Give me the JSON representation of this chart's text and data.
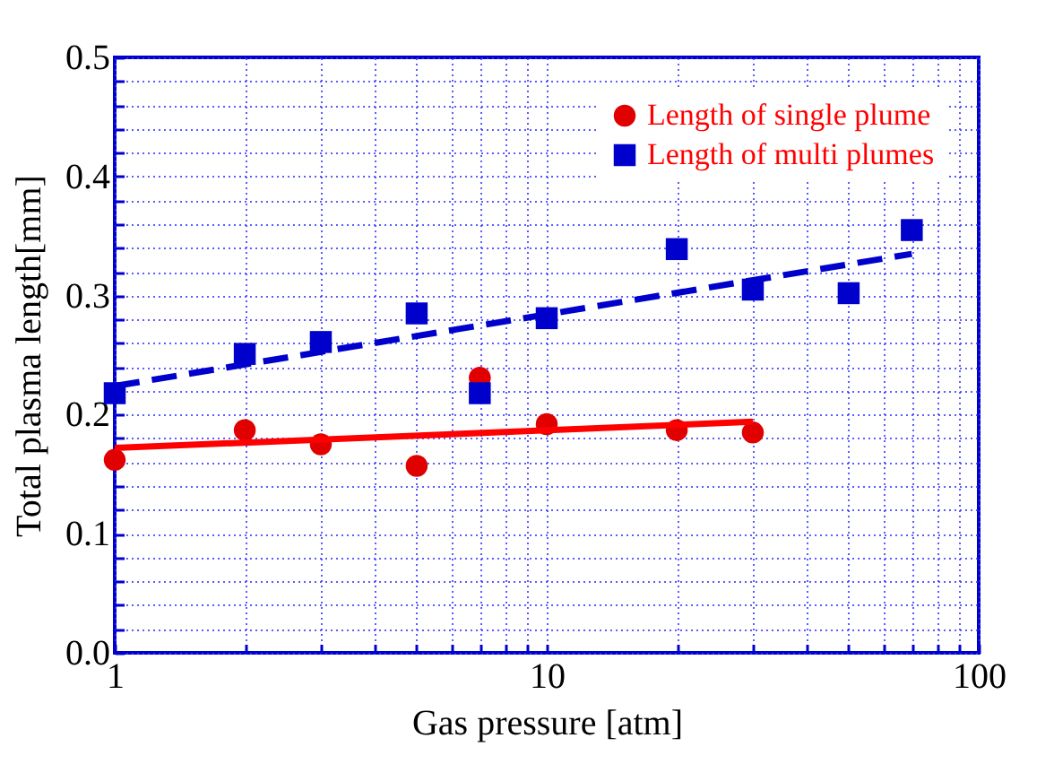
{
  "chart_data": {
    "type": "scatter",
    "xlabel": "Gas pressure [atm]",
    "ylabel": "Total plasma length[mm]",
    "log": "x",
    "grid": true,
    "legend": "top right",
    "xlim": [
      1,
      100
    ],
    "ylim": [
      0,
      0.5
    ],
    "xticks": [
      1,
      {
        "value": 2,
        "label": null
      },
      {
        "value": 3,
        "label": null
      },
      {
        "value": 4,
        "label": null
      },
      {
        "value": 5,
        "label": null
      },
      {
        "value": 6,
        "label": null
      },
      {
        "value": 7,
        "label": null
      },
      {
        "value": 8,
        "label": null
      },
      {
        "value": 9,
        "label": null
      },
      10,
      {
        "value": 20,
        "label": null
      },
      {
        "value": 30,
        "label": null
      },
      {
        "value": 40,
        "label": null
      },
      {
        "value": 50,
        "label": null
      },
      {
        "value": 60,
        "label": null
      },
      {
        "value": 70,
        "label": null
      },
      {
        "value": 80,
        "label": null
      },
      {
        "value": 90,
        "label": null
      },
      100
    ],
    "yticks": [
      {
        "value": 0,
        "label": "0.0"
      },
      {
        "value": 0.02,
        "label": null
      },
      {
        "value": 0.04,
        "label": null
      },
      {
        "value": 0.06,
        "label": null
      },
      {
        "value": 0.08,
        "label": null
      },
      {
        "value": 0.1,
        "label": "0.1"
      },
      {
        "value": 0.12,
        "label": null
      },
      {
        "value": 0.14,
        "label": null
      },
      {
        "value": 0.16,
        "label": null
      },
      {
        "value": 0.18,
        "label": null
      },
      {
        "value": 0.2,
        "label": "0.2"
      },
      {
        "value": 0.22,
        "label": null
      },
      {
        "value": 0.24,
        "label": null
      },
      {
        "value": 0.26,
        "label": null
      },
      {
        "value": 0.28,
        "label": null
      },
      {
        "value": 0.3,
        "label": "0.3"
      },
      {
        "value": 0.32,
        "label": null
      },
      {
        "value": 0.34,
        "label": null
      },
      {
        "value": 0.36,
        "label": null
      },
      {
        "value": 0.38,
        "label": null
      },
      {
        "value": 0.4,
        "label": "0.4"
      },
      {
        "value": 0.42,
        "label": null
      },
      {
        "value": 0.44,
        "label": null
      },
      {
        "value": 0.46,
        "label": null
      },
      {
        "value": 0.48,
        "label": null
      },
      {
        "value": 0.5,
        "label": "0.5"
      }
    ],
    "series": [
      {
        "name": "Length of single plume",
        "type": "scatter",
        "marker": "circle",
        "color": "#e00000",
        "x": [
          1,
          2,
          3,
          5,
          7,
          10,
          20,
          30
        ],
        "values": [
          0.162,
          0.187,
          0.175,
          0.157,
          0.231,
          0.192,
          0.187,
          0.185
        ]
      },
      {
        "name": "Length of multi plumes",
        "type": "scatter",
        "marker": "square",
        "color": "#0000cc",
        "x": [
          1,
          2,
          3,
          5,
          7,
          10,
          20,
          30,
          50,
          70
        ],
        "values": [
          0.218,
          0.251,
          0.261,
          0.285,
          0.218,
          0.281,
          0.339,
          0.305,
          0.302,
          0.355
        ]
      },
      {
        "type": "line",
        "line_style": "solid",
        "color": "#ff0000",
        "x": [
          1,
          30
        ],
        "values": [
          0.172,
          0.194
        ]
      },
      {
        "type": "line",
        "line_style": "dashed",
        "color": "#0000cc",
        "x": [
          1,
          70
        ],
        "values": [
          0.224,
          0.335
        ]
      }
    ]
  }
}
